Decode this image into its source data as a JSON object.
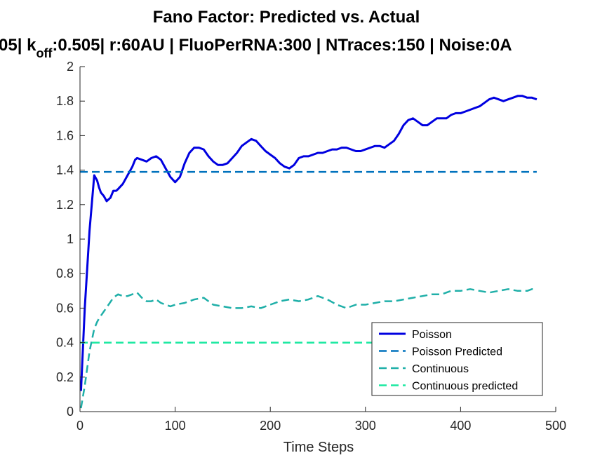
{
  "chart_data": {
    "type": "line",
    "title": "Fano Factor: Predicted vs. Actual",
    "subtitle_parts": [
      "05| k",
      "off",
      ":0.505| r:60AU | FluoPerRNA:300 | NTraces:150 | Noise:0A"
    ],
    "xlabel": "Time Steps",
    "ylabel": "",
    "xlim": [
      0,
      500
    ],
    "ylim": [
      0,
      2
    ],
    "xticks": [
      0,
      100,
      200,
      300,
      400,
      500
    ],
    "yticks": [
      0,
      0.2,
      0.4,
      0.6,
      0.8,
      1,
      1.2,
      1.4,
      1.6,
      1.8,
      2
    ],
    "grid": false,
    "legend_position": "lower-right",
    "series": [
      {
        "name": "Poisson",
        "color": "#0000e0",
        "style": "solid",
        "x": [
          1,
          5,
          10,
          15,
          18,
          20,
          22,
          25,
          28,
          30,
          32,
          35,
          38,
          40,
          45,
          50,
          55,
          58,
          60,
          65,
          70,
          75,
          80,
          85,
          90,
          95,
          100,
          105,
          110,
          115,
          120,
          125,
          130,
          135,
          140,
          145,
          150,
          155,
          160,
          165,
          170,
          175,
          180,
          185,
          190,
          195,
          200,
          205,
          210,
          215,
          220,
          225,
          230,
          235,
          240,
          245,
          250,
          255,
          260,
          265,
          270,
          275,
          280,
          285,
          290,
          295,
          300,
          305,
          310,
          315,
          320,
          325,
          330,
          335,
          340,
          345,
          350,
          355,
          360,
          365,
          370,
          375,
          380,
          385,
          390,
          395,
          400,
          405,
          410,
          415,
          420,
          425,
          430,
          435,
          440,
          445,
          450,
          455,
          460,
          465,
          470,
          475,
          480
        ],
        "y": [
          0.12,
          0.6,
          1.05,
          1.37,
          1.34,
          1.3,
          1.27,
          1.25,
          1.22,
          1.23,
          1.24,
          1.28,
          1.28,
          1.29,
          1.32,
          1.37,
          1.42,
          1.46,
          1.47,
          1.46,
          1.45,
          1.47,
          1.48,
          1.46,
          1.41,
          1.36,
          1.33,
          1.36,
          1.44,
          1.5,
          1.53,
          1.53,
          1.52,
          1.48,
          1.45,
          1.43,
          1.43,
          1.44,
          1.47,
          1.5,
          1.54,
          1.56,
          1.58,
          1.57,
          1.54,
          1.51,
          1.49,
          1.47,
          1.44,
          1.42,
          1.41,
          1.43,
          1.47,
          1.48,
          1.48,
          1.49,
          1.5,
          1.5,
          1.51,
          1.52,
          1.52,
          1.53,
          1.53,
          1.52,
          1.51,
          1.51,
          1.52,
          1.53,
          1.54,
          1.54,
          1.53,
          1.55,
          1.57,
          1.61,
          1.66,
          1.69,
          1.7,
          1.68,
          1.66,
          1.66,
          1.68,
          1.7,
          1.7,
          1.7,
          1.72,
          1.73,
          1.73,
          1.74,
          1.75,
          1.76,
          1.77,
          1.79,
          1.81,
          1.82,
          1.81,
          1.8,
          1.81,
          1.82,
          1.83,
          1.83,
          1.82,
          1.82,
          1.81
        ]
      },
      {
        "name": "Poisson Predicted",
        "color": "#0072bd",
        "style": "dashed",
        "x": [
          0,
          480
        ],
        "y": [
          1.39,
          1.39
        ]
      },
      {
        "name": "Continuous",
        "color": "#1fafa8",
        "style": "dashed",
        "x": [
          1,
          5,
          10,
          15,
          18,
          20,
          25,
          30,
          35,
          40,
          45,
          50,
          55,
          60,
          65,
          70,
          75,
          80,
          85,
          90,
          95,
          100,
          110,
          120,
          130,
          140,
          150,
          160,
          170,
          180,
          190,
          200,
          210,
          220,
          230,
          240,
          250,
          260,
          270,
          280,
          290,
          300,
          310,
          320,
          330,
          340,
          350,
          360,
          370,
          380,
          390,
          400,
          410,
          420,
          430,
          440,
          450,
          460,
          470,
          475,
          480
        ],
        "y": [
          0.02,
          0.15,
          0.35,
          0.48,
          0.52,
          0.54,
          0.58,
          0.62,
          0.66,
          0.68,
          0.67,
          0.67,
          0.68,
          0.69,
          0.66,
          0.64,
          0.64,
          0.65,
          0.63,
          0.62,
          0.61,
          0.62,
          0.63,
          0.65,
          0.66,
          0.62,
          0.61,
          0.6,
          0.6,
          0.61,
          0.6,
          0.62,
          0.64,
          0.65,
          0.64,
          0.65,
          0.67,
          0.65,
          0.62,
          0.6,
          0.62,
          0.62,
          0.63,
          0.64,
          0.64,
          0.65,
          0.66,
          0.67,
          0.68,
          0.68,
          0.7,
          0.7,
          0.71,
          0.7,
          0.69,
          0.7,
          0.71,
          0.7,
          0.7,
          0.71,
          0.71
        ]
      },
      {
        "name": "Continuous predicted",
        "color": "#19e8a0",
        "style": "dashed",
        "x": [
          0,
          480
        ],
        "y": [
          0.4,
          0.4
        ]
      }
    ]
  }
}
